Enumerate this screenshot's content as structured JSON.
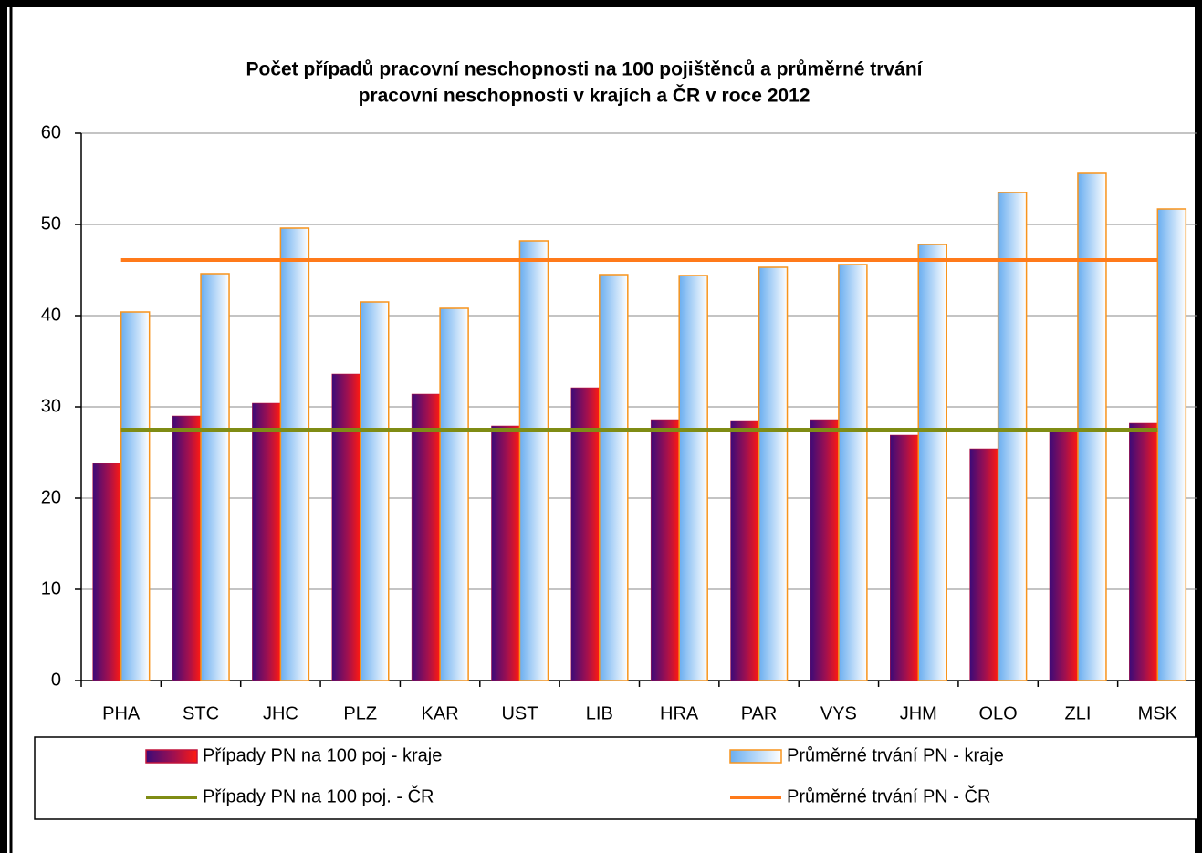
{
  "chart_data": {
    "type": "bar",
    "title": [
      "Počet případů pracovní neschopnosti na 100 pojištěnců a průměrné trvání",
      "pracovní neschopnosti v krajích a ČR v roce 2012"
    ],
    "categories": [
      "PHA",
      "STC",
      "JHC",
      "PLZ",
      "KAR",
      "UST",
      "LIB",
      "HRA",
      "PAR",
      "VYS",
      "JHM",
      "OLO",
      "ZLI",
      "MSK"
    ],
    "series": [
      {
        "name": "Případy PN na 100 poj - kraje",
        "type": "bar",
        "color": "#c0143c",
        "values": [
          23.8,
          29,
          30.4,
          33.6,
          31.4,
          27.9,
          32.1,
          28.6,
          28.5,
          28.6,
          26.9,
          25.4,
          27.3,
          28.2
        ]
      },
      {
        "name": "Průměrné trvání PN - kraje",
        "type": "bar",
        "color": "#8cc0f4",
        "values": [
          40.4,
          44.6,
          49.6,
          41.5,
          40.8,
          48.2,
          44.5,
          44.4,
          45.3,
          45.6,
          47.8,
          53.5,
          55.6,
          51.7
        ]
      },
      {
        "name": "Případy PN na 100 poj. - ČR",
        "type": "line",
        "color": "#7f8c14",
        "values": [
          27.5,
          27.5,
          27.5,
          27.5,
          27.5,
          27.5,
          27.5,
          27.5,
          27.5,
          27.5,
          27.5,
          27.5,
          27.5,
          27.5
        ]
      },
      {
        "name": "Průměrné trvání PN - ČR",
        "type": "line",
        "color": "#ff7a1a",
        "values": [
          46.1,
          46.1,
          46.1,
          46.1,
          46.1,
          46.1,
          46.1,
          46.1,
          46.1,
          46.1,
          46.1,
          46.1,
          46.1,
          46.1
        ]
      }
    ],
    "ylim": [
      0,
      60
    ],
    "yticks": [
      0,
      10,
      20,
      30,
      40,
      50,
      60
    ],
    "grid": true,
    "legend": "bottom"
  }
}
